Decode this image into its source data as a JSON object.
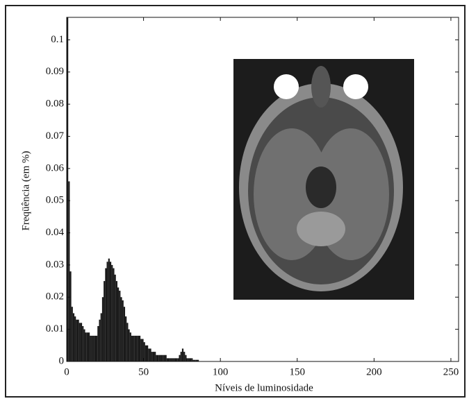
{
  "chart_data": {
    "type": "histogram",
    "xlabel": "Níveis de luminosidade",
    "ylabel": "Freqüência (em %)",
    "color": "#1a1a1a",
    "xlim": [
      0,
      255
    ],
    "xticks": [
      0,
      50,
      100,
      150,
      200,
      250
    ],
    "ylim": [
      0,
      0.107
    ],
    "yticks": [
      0,
      0.01,
      0.02,
      0.03,
      0.04,
      0.05,
      0.06,
      0.07,
      0.08,
      0.09,
      0.1
    ],
    "bins": [
      0,
      1,
      2,
      3,
      4,
      5,
      6,
      7,
      8,
      9,
      10,
      11,
      12,
      13,
      14,
      15,
      16,
      17,
      18,
      19,
      20,
      21,
      22,
      23,
      24,
      25,
      26,
      27,
      28,
      29,
      30,
      31,
      32,
      33,
      34,
      35,
      36,
      37,
      38,
      39,
      40,
      41,
      42,
      43,
      44,
      45,
      46,
      47,
      48,
      49,
      50,
      51,
      52,
      53,
      54,
      55,
      56,
      57,
      58,
      59,
      60,
      61,
      62,
      63,
      64,
      65,
      66,
      67,
      68,
      69,
      70,
      71,
      72,
      73,
      74,
      75,
      76,
      77,
      78,
      79,
      80,
      81,
      82,
      83,
      84,
      85,
      86
    ],
    "counts": [
      0.107,
      0.056,
      0.028,
      0.017,
      0.015,
      0.014,
      0.013,
      0.013,
      0.012,
      0.012,
      0.011,
      0.01,
      0.009,
      0.009,
      0.009,
      0.008,
      0.008,
      0.008,
      0.008,
      0.008,
      0.011,
      0.013,
      0.015,
      0.02,
      0.025,
      0.029,
      0.031,
      0.032,
      0.031,
      0.03,
      0.029,
      0.027,
      0.025,
      0.023,
      0.022,
      0.02,
      0.019,
      0.017,
      0.014,
      0.012,
      0.01,
      0.009,
      0.008,
      0.008,
      0.008,
      0.008,
      0.008,
      0.008,
      0.007,
      0.007,
      0.006,
      0.005,
      0.005,
      0.004,
      0.004,
      0.003,
      0.003,
      0.003,
      0.002,
      0.002,
      0.002,
      0.002,
      0.002,
      0.002,
      0.002,
      0.001,
      0.001,
      0.001,
      0.001,
      0.001,
      0.001,
      0.001,
      0.001,
      0.002,
      0.003,
      0.004,
      0.003,
      0.002,
      0.001,
      0.001,
      0.001,
      0.001,
      0.0005,
      0.0005,
      0.0005,
      0.0005
    ]
  }
}
